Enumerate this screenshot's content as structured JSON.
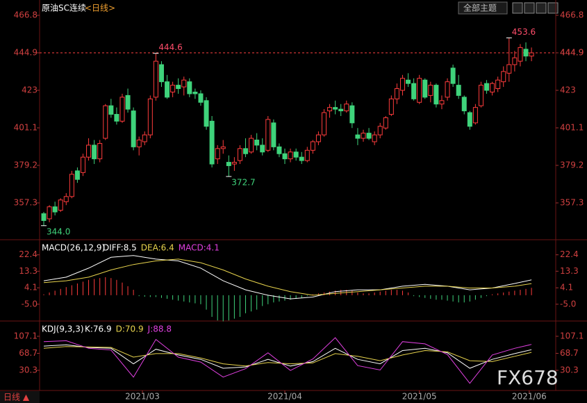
{
  "toolbar": {
    "theme_button": "全部主题"
  },
  "footer": {
    "period": "日线 ▲"
  },
  "watermark": "FX678",
  "chart_data": [
    {
      "type": "candlestick",
      "title": "原油SC连续",
      "subtitle": "<日线>",
      "up_color": "#ff3c3c",
      "down_color": "#3fd37b",
      "ylim": [
        335.8,
        473.7
      ],
      "yticks": [
        466.8,
        444.9,
        423.0,
        401.1,
        379.2,
        357.3
      ],
      "last_price": 444.9,
      "xticks": [
        {
          "value": 17.6,
          "label": "2021/03"
        },
        {
          "value": 43,
          "label": "2021/04"
        },
        {
          "value": 67,
          "label": "2021/05"
        },
        {
          "value": 86.6,
          "label": "2021/06"
        }
      ],
      "candles": [
        [
          351,
          352,
          344,
          347
        ],
        [
          348,
          356,
          346,
          355
        ],
        [
          355,
          358,
          350,
          352
        ],
        [
          353,
          360,
          352,
          359
        ],
        [
          358,
          363,
          356,
          361
        ],
        [
          361,
          376,
          360,
          374
        ],
        [
          376,
          378,
          369,
          371
        ],
        [
          375,
          386,
          373,
          384
        ],
        [
          384,
          395,
          382,
          391
        ],
        [
          391,
          394,
          380,
          383
        ],
        [
          383,
          394,
          381,
          392
        ],
        [
          395,
          415,
          394,
          414
        ],
        [
          414,
          418,
          407,
          409
        ],
        [
          409,
          413,
          403,
          405
        ],
        [
          405,
          421,
          404,
          419
        ],
        [
          420,
          424,
          410,
          412
        ],
        [
          411,
          413,
          388,
          390
        ],
        [
          390,
          396,
          385,
          394
        ],
        [
          393,
          399,
          391,
          397
        ],
        [
          397,
          420,
          395,
          418
        ],
        [
          419,
          444.6,
          417,
          440
        ],
        [
          438,
          440,
          425,
          428
        ],
        [
          428,
          432,
          418,
          419
        ],
        [
          422,
          428,
          419,
          426
        ],
        [
          426,
          430,
          421,
          424
        ],
        [
          425,
          431,
          420,
          429
        ],
        [
          428,
          430,
          419,
          421
        ],
        [
          422,
          424,
          418,
          421
        ],
        [
          421,
          423,
          414,
          416
        ],
        [
          417,
          419,
          400,
          402
        ],
        [
          405,
          408,
          378,
          380
        ],
        [
          383,
          391,
          380,
          389
        ],
        [
          389,
          394,
          386,
          390
        ],
        [
          381,
          385,
          372.7,
          379
        ],
        [
          380,
          384,
          376,
          381
        ],
        [
          382,
          391,
          380,
          389
        ],
        [
          389,
          395,
          384,
          386
        ],
        [
          387,
          397,
          386,
          395
        ],
        [
          394,
          398,
          388,
          391
        ],
        [
          391,
          395,
          385,
          387
        ],
        [
          388,
          408,
          387,
          406
        ],
        [
          404,
          406,
          388,
          390
        ],
        [
          390,
          392,
          384,
          386
        ],
        [
          386,
          389,
          380,
          383
        ],
        [
          383,
          389,
          381,
          387
        ],
        [
          387,
          389,
          382,
          384
        ],
        [
          384,
          387,
          380,
          382
        ],
        [
          382,
          390,
          381,
          388
        ],
        [
          388,
          394,
          386,
          393
        ],
        [
          393,
          399,
          391,
          397
        ],
        [
          397,
          412,
          396,
          410
        ],
        [
          411,
          415,
          407,
          413
        ],
        [
          413,
          417,
          409,
          412
        ],
        [
          412,
          415,
          408,
          411
        ],
        [
          411,
          417,
          410,
          415
        ],
        [
          414,
          416,
          401,
          404
        ],
        [
          397,
          401,
          391,
          395
        ],
        [
          395,
          400,
          393,
          398
        ],
        [
          398,
          401,
          394,
          395
        ],
        [
          393,
          399,
          391,
          397
        ],
        [
          397,
          404,
          395,
          402
        ],
        [
          401,
          408,
          400,
          407
        ],
        [
          409,
          420,
          408,
          418
        ],
        [
          418,
          427,
          415,
          424
        ],
        [
          423,
          432,
          420,
          430
        ],
        [
          429,
          433,
          425,
          427
        ],
        [
          427,
          430,
          417,
          418
        ],
        [
          416,
          432,
          415,
          430
        ],
        [
          429,
          430,
          418,
          419
        ],
        [
          420,
          428,
          416,
          426
        ],
        [
          426,
          427,
          413,
          415
        ],
        [
          415,
          420,
          412,
          417
        ],
        [
          419,
          430,
          417,
          428
        ],
        [
          436,
          438,
          425,
          427
        ],
        [
          426,
          432,
          418,
          420
        ],
        [
          419,
          420,
          409,
          411
        ],
        [
          410,
          411,
          400,
          402
        ],
        [
          404,
          415,
          403,
          413
        ],
        [
          414,
          428,
          413,
          426
        ],
        [
          427,
          429,
          421,
          423
        ],
        [
          422,
          428,
          420,
          427
        ],
        [
          424,
          431,
          422,
          429
        ],
        [
          428,
          437,
          425,
          434
        ],
        [
          433,
          453.6,
          428,
          438
        ],
        [
          438,
          446,
          434,
          442
        ],
        [
          440,
          450,
          437,
          448
        ],
        [
          447,
          451,
          440,
          443
        ],
        [
          443,
          448,
          440,
          444.9
        ]
      ],
      "annotations": [
        {
          "candle": 20,
          "value": 444.6,
          "label": "444.6",
          "color": "#ff4d6a",
          "side": "high"
        },
        {
          "candle": 83,
          "value": 453.6,
          "label": "453.6",
          "color": "#ff4d6a",
          "side": "high"
        },
        {
          "candle": 33,
          "value": 372.7,
          "label": "372.7",
          "color": "#3fd37b",
          "side": "low"
        },
        {
          "candle": 0,
          "value": 344,
          "label": "344.0",
          "color": "#3fd37b",
          "side": "low"
        }
      ]
    },
    {
      "type": "macd",
      "title": "MACD(26,12,9)",
      "legend": [
        {
          "text": "DIFF:8.5",
          "color": "#ffffff"
        },
        {
          "text": "DEA:6.4",
          "color": "#e8d44d"
        },
        {
          "text": "MACD:4.1",
          "color": "#e040e0"
        }
      ],
      "ylim": [
        -14.3,
        29.6
      ],
      "yticks": [
        22.4,
        13.3,
        4.1,
        {
          "value": -5,
          "label": "-5.0"
        }
      ],
      "x": [
        0,
        4,
        8,
        12,
        16,
        20,
        24,
        28,
        32,
        36,
        40,
        44,
        48,
        52,
        56,
        60,
        64,
        68,
        72,
        76,
        80,
        84,
        87
      ],
      "series": [
        {
          "name": "DIFF",
          "color": "#ffffff",
          "values": [
            8,
            10,
            15,
            21,
            22,
            20,
            19,
            15,
            8,
            3,
            0,
            -2,
            -1,
            2,
            3,
            3,
            5,
            6,
            5,
            3,
            4,
            6.5,
            8.5
          ]
        },
        {
          "name": "DEA",
          "color": "#e8d44d",
          "values": [
            7,
            8,
            10,
            14,
            17,
            19,
            20,
            18,
            14,
            9,
            5,
            2,
            0,
            1,
            2,
            3,
            4,
            5,
            5,
            4,
            4,
            5,
            6.4
          ]
        }
      ],
      "hist_colors": {
        "up": "#ff3c3c",
        "down": "#3fd37b"
      },
      "hist": [
        0.5,
        1.5,
        2.5,
        3.5,
        4.5,
        5.5,
        6.5,
        7.5,
        8.5,
        9,
        9.5,
        10,
        9.5,
        8.5,
        7,
        5,
        3,
        -0.5,
        -0.8,
        -1,
        -1,
        -1.5,
        -2,
        -2.5,
        -3,
        -3.5,
        -4,
        -4.5,
        -5,
        -8,
        -12,
        -14,
        -14.5,
        -14,
        -13,
        -12,
        -10,
        -9,
        -8,
        -6,
        -5,
        -4,
        -3.5,
        -3,
        -2.5,
        -2,
        -1.5,
        -0.5,
        0.5,
        1,
        1.5,
        2,
        2.5,
        3,
        3,
        2.5,
        1.5,
        1,
        1,
        1.5,
        2,
        2.5,
        3,
        3,
        2.5,
        1.5,
        -0.5,
        -1,
        -1.5,
        -2,
        -2.5,
        -2.5,
        -3,
        -3.5,
        -4,
        -4,
        -3.5,
        -2.5,
        -1.5,
        -0.5,
        0.5,
        1,
        1.5,
        2,
        2.5,
        3,
        3.5,
        4.1
      ]
    },
    {
      "type": "kdj",
      "title": "KDJ(9,3,3)",
      "legend": [
        {
          "text": "K:76.9",
          "color": "#ffffff"
        },
        {
          "text": "D:70.9",
          "color": "#e8d44d"
        },
        {
          "text": "J:88.8",
          "color": "#e040e0"
        }
      ],
      "ylim": [
        -15.2,
        136.9
      ],
      "yticks": [
        107.1,
        68.7,
        30.3
      ],
      "x": [
        0,
        4,
        8,
        12,
        16,
        20,
        24,
        28,
        32,
        36,
        40,
        44,
        48,
        52,
        56,
        60,
        64,
        68,
        72,
        76,
        80,
        84,
        87
      ],
      "series": [
        {
          "name": "K",
          "color": "#ffffff",
          "values": [
            85,
            88,
            82,
            80,
            45,
            78,
            65,
            55,
            35,
            38,
            55,
            40,
            50,
            80,
            55,
            45,
            75,
            80,
            70,
            35,
            55,
            68,
            76.9
          ]
        },
        {
          "name": "D",
          "color": "#e8d44d",
          "values": [
            80,
            84,
            83,
            82,
            60,
            68,
            68,
            58,
            45,
            40,
            48,
            45,
            47,
            68,
            62,
            52,
            65,
            75,
            72,
            52,
            50,
            62,
            70.9
          ]
        },
        {
          "name": "J",
          "color": "#e040e0",
          "values": [
            95,
            97,
            80,
            76,
            15,
            100,
            60,
            49,
            15,
            34,
            70,
            30,
            56,
            104,
            41,
            31,
            95,
            90,
            66,
            1,
            65,
            80,
            88.8
          ]
        }
      ]
    }
  ]
}
